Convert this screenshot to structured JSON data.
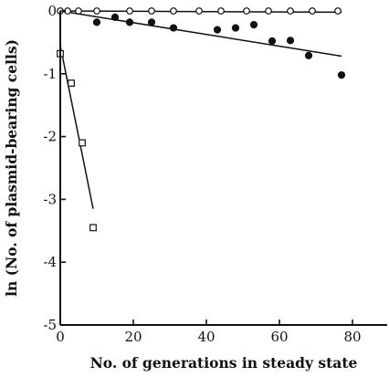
{
  "chart_data": {
    "type": "scatter",
    "title": "",
    "xlabel": "No. of generations in steady state",
    "ylabel": "ln (No. of plasmid-bearing cells)",
    "xlim": [
      0,
      90
    ],
    "ylim": [
      -5,
      0
    ],
    "x_ticks": [
      0,
      20,
      40,
      60,
      80
    ],
    "y_ticks": [
      0,
      -1,
      -2,
      -3,
      -4,
      -5
    ],
    "x_tick_labels": [
      "0",
      "20",
      "40",
      "60",
      "80"
    ],
    "y_tick_labels": [
      "0",
      "-1",
      "-2",
      "-3",
      "-4",
      "-5"
    ],
    "grid": false,
    "legend": false,
    "series": [
      {
        "marker": "open-circle",
        "x": [
          0,
          2,
          5,
          10,
          19,
          25,
          31,
          38,
          44,
          51,
          57,
          63,
          69,
          76
        ],
        "y": [
          0,
          0,
          0,
          0,
          0,
          0,
          0,
          0,
          0,
          0,
          0,
          0,
          0,
          0
        ],
        "fit": {
          "x": [
            0,
            77
          ],
          "y": [
            0,
            -0.02
          ]
        }
      },
      {
        "marker": "filled-circle",
        "x": [
          10,
          15,
          19,
          25,
          31,
          43,
          48,
          53,
          58,
          63,
          68,
          77
        ],
        "y": [
          -0.18,
          -0.1,
          -0.18,
          -0.18,
          -0.27,
          -0.3,
          -0.27,
          -0.22,
          -0.48,
          -0.47,
          -0.71,
          -1.02
        ],
        "fit": {
          "x": [
            0,
            77
          ],
          "y": [
            0,
            -0.72
          ]
        }
      },
      {
        "marker": "open-square",
        "x": [
          0,
          3,
          6,
          9
        ],
        "y": [
          -0.68,
          -1.15,
          -2.1,
          -3.45
        ],
        "fit": {
          "x": [
            0,
            9
          ],
          "y": [
            -0.55,
            -3.15
          ]
        }
      }
    ]
  }
}
